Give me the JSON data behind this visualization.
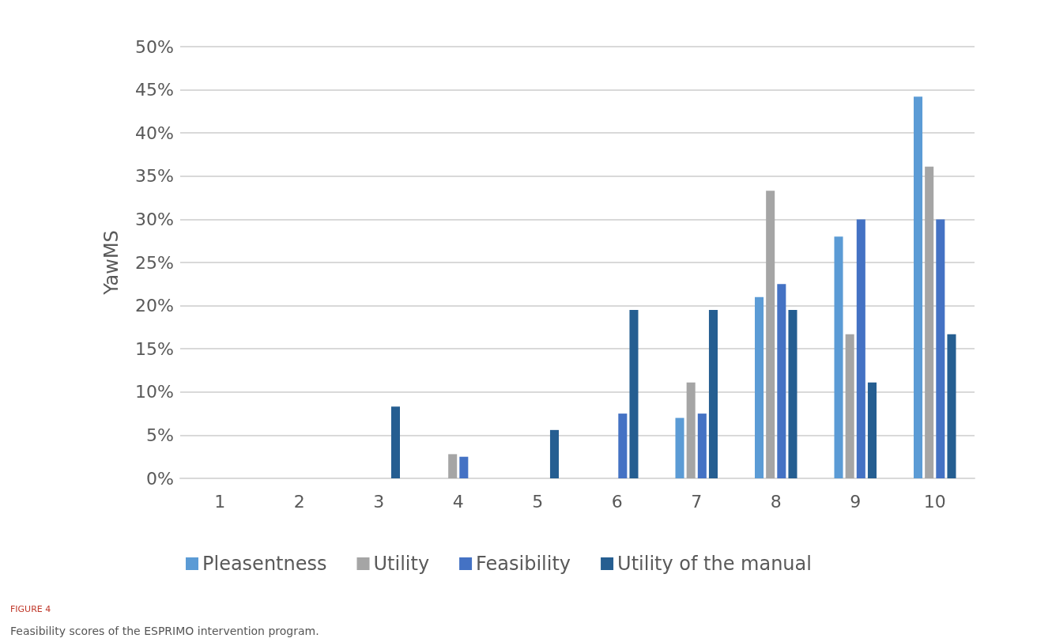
{
  "chart_data": {
    "type": "bar",
    "title": "FIGURE 4",
    "subtitle": "Feasibility scores of the ESPRIMO intervention program.",
    "ylabel": "YawMS",
    "categories": [
      "1",
      "2",
      "3",
      "4",
      "5",
      "6",
      "7",
      "8",
      "9",
      "10"
    ],
    "series": [
      {
        "name": "Pleasentness",
        "color": "#5b9bd5",
        "values": [
          0,
          0,
          0,
          0,
          0,
          0,
          7,
          21,
          28,
          44.2
        ]
      },
      {
        "name": "Utility",
        "color": "#a5a5a5",
        "values": [
          0,
          0,
          0,
          2.8,
          0,
          0,
          11.1,
          33.3,
          16.7,
          36.1
        ]
      },
      {
        "name": "Feasibility",
        "color": "#4472c4",
        "values": [
          0,
          0,
          0,
          2.5,
          0,
          7.5,
          7.5,
          22.5,
          30,
          30
        ]
      },
      {
        "name": "Utility of the manual",
        "color": "#255e91",
        "values": [
          0,
          0,
          8.3,
          0,
          5.6,
          19.5,
          19.5,
          19.5,
          11.1,
          16.7
        ]
      }
    ],
    "ylim": [
      0,
      50
    ],
    "yticks": [
      {
        "value": 0,
        "label": "0%"
      },
      {
        "value": 5,
        "label": "5%"
      },
      {
        "value": 10,
        "label": "10%"
      },
      {
        "value": 15,
        "label": "15%"
      },
      {
        "value": 20,
        "label": "20%"
      },
      {
        "value": 25,
        "label": "25%"
      },
      {
        "value": 30,
        "label": "30%"
      },
      {
        "value": 35,
        "label": "35%"
      },
      {
        "value": 40,
        "label": "40%"
      },
      {
        "value": 45,
        "label": "45%"
      },
      {
        "value": 50,
        "label": "50%"
      }
    ],
    "grid": "y",
    "legend": "bottom"
  }
}
